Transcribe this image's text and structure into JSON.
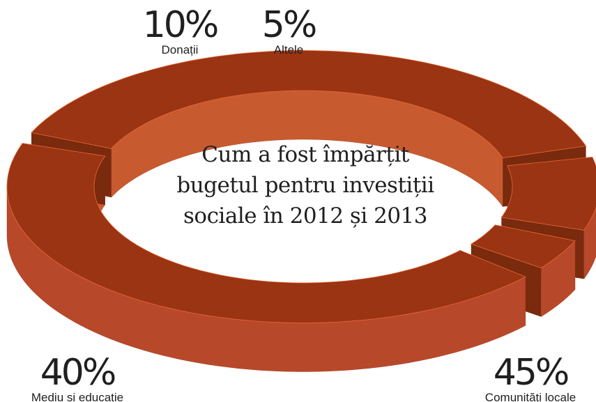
{
  "chart_data": {
    "type": "pie",
    "title_lines": [
      "Cum a fost împărțit",
      "bugetul pentru investiții",
      "sociale în 2012 și 2013"
    ],
    "slices": [
      {
        "label": "Comunități locale",
        "value": 45,
        "display": "45%"
      },
      {
        "label": "Mediu și educație",
        "value": 40,
        "display": "40%"
      },
      {
        "label": "Donații",
        "value": 10,
        "display": "10%"
      },
      {
        "label": "Altele",
        "value": 5,
        "display": "5%"
      }
    ],
    "colors": {
      "top": "#9a3412",
      "side": "#b8482a",
      "cut": "#7a2a0d",
      "inner": "#c85a30",
      "highlight": "#e86a3a"
    }
  }
}
